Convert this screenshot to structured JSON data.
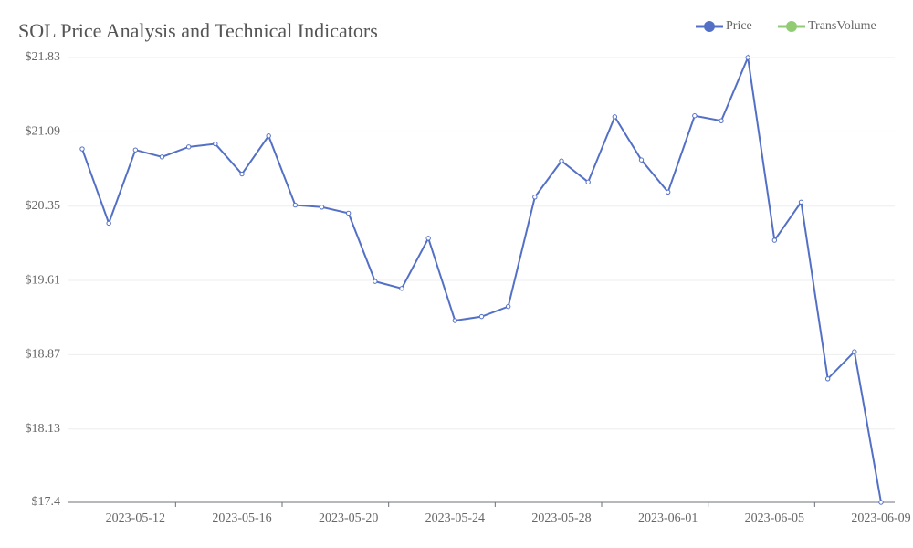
{
  "chart_data": {
    "type": "line",
    "title": "SOL Price Analysis and Technical Indicators",
    "categories": [
      null,
      null,
      "2023-05-12",
      null,
      null,
      null,
      "2023-05-16",
      null,
      null,
      null,
      "2023-05-20",
      null,
      null,
      null,
      "2023-05-24",
      null,
      null,
      null,
      "2023-05-28",
      null,
      null,
      null,
      "2023-06-01",
      null,
      null,
      null,
      "2023-06-05",
      null,
      null,
      null,
      "2023-06-09"
    ],
    "series": [
      {
        "name": "Price",
        "color": "#5470c6",
        "values": [
          20.92,
          20.18,
          20.91,
          20.84,
          20.94,
          20.97,
          20.67,
          21.05,
          20.36,
          20.34,
          20.28,
          19.6,
          19.53,
          20.03,
          19.21,
          19.25,
          19.35,
          20.44,
          20.8,
          20.59,
          21.24,
          20.81,
          20.49,
          21.25,
          21.2,
          21.83,
          20.01,
          20.39,
          18.63,
          18.9,
          17.4
        ]
      },
      {
        "name": "TransVolume",
        "color": "#91cc75",
        "values": [
          null,
          null,
          null,
          null,
          null,
          null,
          null,
          null,
          null,
          null,
          null,
          null,
          null,
          null,
          null,
          null,
          null,
          null,
          null,
          null,
          null,
          null,
          null,
          null,
          null,
          null,
          null,
          null,
          null,
          null,
          null
        ]
      }
    ],
    "ylim": [
      17.4,
      21.83
    ],
    "yticks": [
      {
        "value": 17.4,
        "label": "$17.4"
      },
      {
        "value": 18.13,
        "label": "$18.13"
      },
      {
        "value": 18.87,
        "label": "$18.87"
      },
      {
        "value": 19.61,
        "label": "$19.61"
      },
      {
        "value": 20.35,
        "label": "$20.35"
      },
      {
        "value": 21.09,
        "label": "$21.09"
      },
      {
        "value": 21.83,
        "label": "$21.83"
      }
    ],
    "grid": true,
    "legend": "top-right"
  }
}
